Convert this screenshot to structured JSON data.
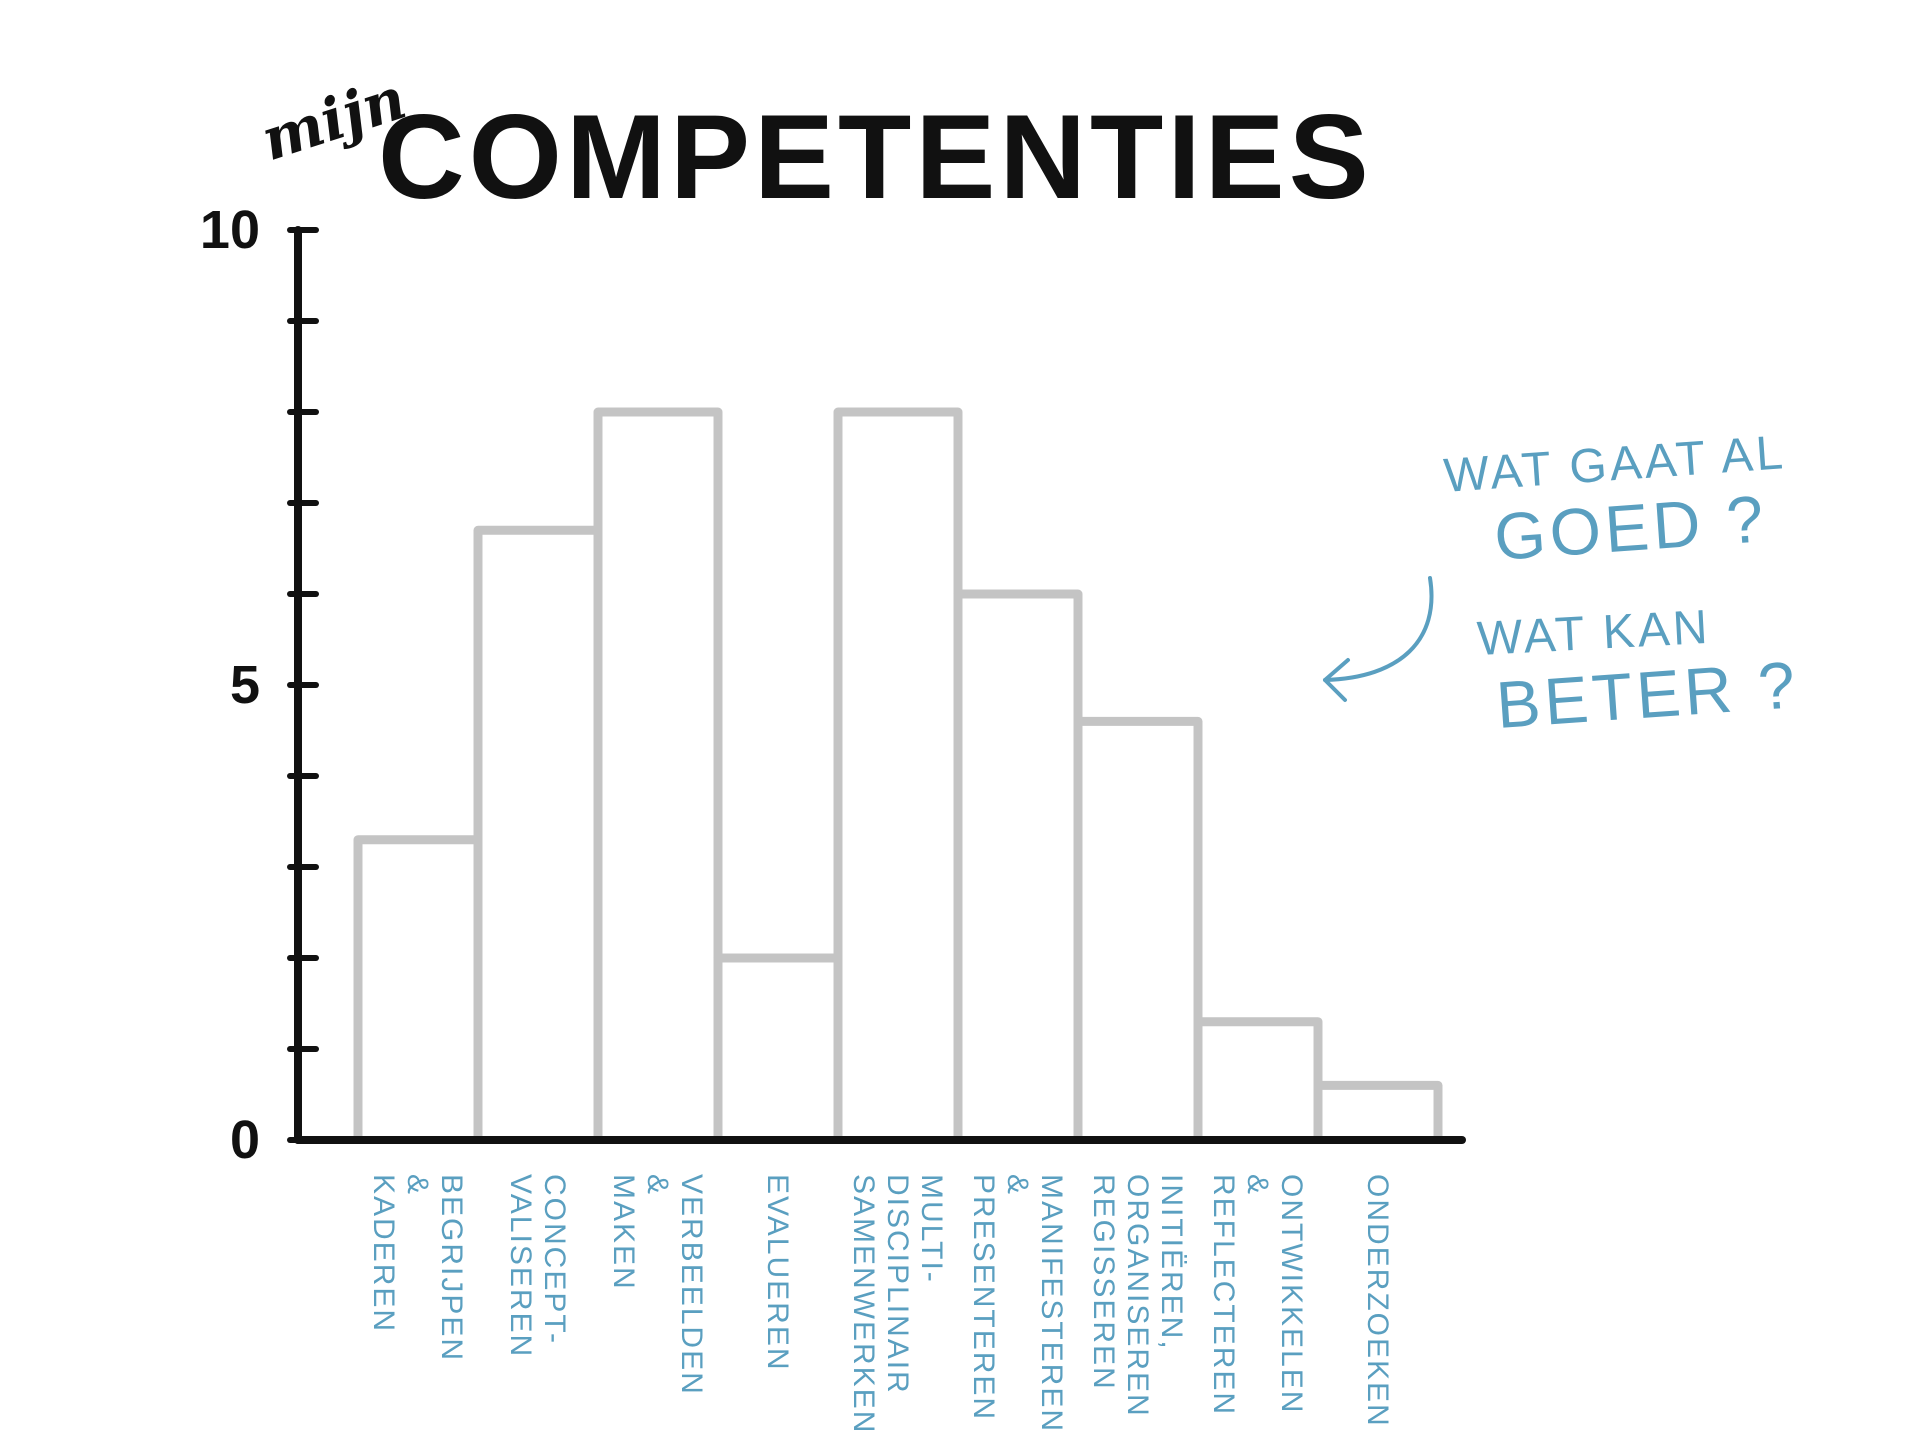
{
  "chart_data": {
    "type": "bar",
    "title_prefix": "mijn",
    "title": "COMPETENTIES",
    "xlabel": "",
    "ylabel": "",
    "ylim": [
      0,
      10
    ],
    "yticks": [
      0,
      5,
      10
    ],
    "grid": false,
    "categories": [
      [
        "BEGRIJPEN",
        "&",
        "KADEREN"
      ],
      [
        "CONCEPT-",
        "VALISEREN"
      ],
      [
        "VERBEELDEN",
        "&",
        "MAKEN"
      ],
      [
        "EVALUEREN"
      ],
      [
        "MULTI-",
        "DISCIPLINAIR",
        "SAMENWERKEN"
      ],
      [
        "MANIFESTEREN",
        "&",
        "PRESENTEREN"
      ],
      [
        "INITIËREN,",
        "ORGANISEREN",
        "REGISSEREN"
      ],
      [
        "ONTWIKKELEN",
        "&",
        "REFLECTEREN"
      ],
      [
        "ONDERZOEKEN"
      ]
    ],
    "values": [
      3.3,
      6.7,
      8.0,
      2.0,
      8.0,
      6.0,
      4.6,
      1.3,
      0.6
    ],
    "annotations": [
      {
        "lines": [
          "WAT GAAT AL",
          "GOED ?"
        ]
      },
      {
        "lines": [
          "WAT KAN",
          "BETER ?"
        ]
      }
    ]
  }
}
